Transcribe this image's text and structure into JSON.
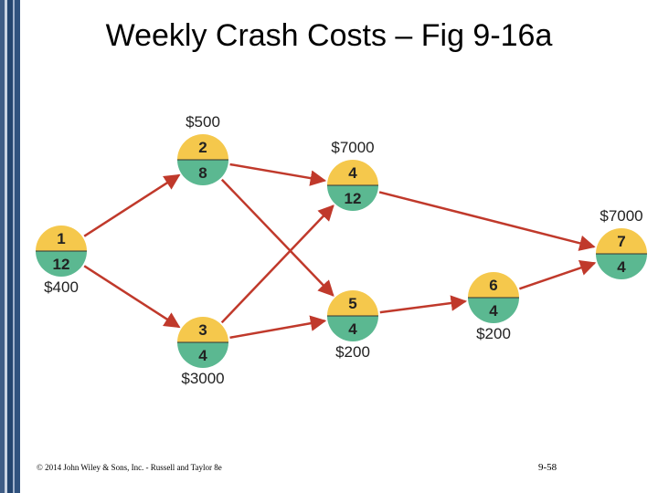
{
  "slide": {
    "title": "Weekly Crash Costs – Fig 9-16a",
    "footer": "© 2014 John Wiley & Sons, Inc. - Russell and Taylor 8e",
    "page_number": "9-58"
  },
  "colors": {
    "node_top": "#f5c84c",
    "node_bottom": "#5bb891",
    "arrow": "#c0392b",
    "sidebar": "#24456f"
  },
  "network": {
    "nodes": [
      {
        "id": "1",
        "top": "1",
        "bottom": "12",
        "cost": "$400"
      },
      {
        "id": "2",
        "top": "2",
        "bottom": "8",
        "cost": "$500"
      },
      {
        "id": "3",
        "top": "3",
        "bottom": "4",
        "cost": "$3000"
      },
      {
        "id": "4",
        "top": "4",
        "bottom": "12",
        "cost": "$7000"
      },
      {
        "id": "5",
        "top": "5",
        "bottom": "4",
        "cost": "$200"
      },
      {
        "id": "6",
        "top": "6",
        "bottom": "4",
        "cost": "$200"
      },
      {
        "id": "7",
        "top": "7",
        "bottom": "4",
        "cost": "$7000"
      }
    ],
    "edges": [
      {
        "from": "1",
        "to": "2"
      },
      {
        "from": "1",
        "to": "3"
      },
      {
        "from": "2",
        "to": "4"
      },
      {
        "from": "2",
        "to": "5"
      },
      {
        "from": "3",
        "to": "4"
      },
      {
        "from": "3",
        "to": "5"
      },
      {
        "from": "4",
        "to": "7"
      },
      {
        "from": "5",
        "to": "6"
      },
      {
        "from": "6",
        "to": "7"
      }
    ]
  }
}
